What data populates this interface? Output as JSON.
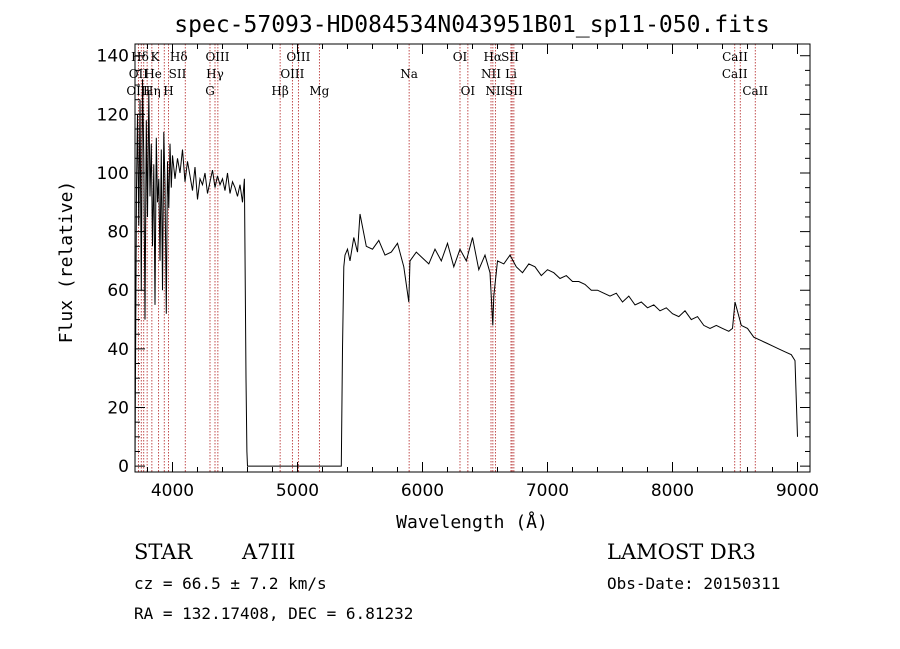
{
  "chart_data": {
    "type": "line",
    "title": "spec-57093-HD084534N043951B01_sp11-050.fits",
    "xlabel": "Wavelength (Å)",
    "ylabel": "Flux (relative)",
    "xlim": [
      3700,
      9100
    ],
    "ylim": [
      -2,
      144
    ],
    "xticks": [
      4000,
      5000,
      6000,
      7000,
      8000,
      9000
    ],
    "yticks": [
      0,
      20,
      40,
      60,
      80,
      100,
      120,
      140
    ],
    "xtick_labels": [
      "4000",
      "5000",
      "6000",
      "7000",
      "8000",
      "9000"
    ],
    "ytick_labels": [
      "0",
      "20",
      "40",
      "60",
      "80",
      "100",
      "120",
      "140"
    ],
    "series": [
      {
        "name": "flux",
        "x": [
          3700,
          3705,
          3712,
          3720,
          3730,
          3740,
          3750,
          3760,
          3770,
          3780,
          3790,
          3800,
          3810,
          3820,
          3830,
          3840,
          3850,
          3860,
          3870,
          3880,
          3890,
          3900,
          3910,
          3920,
          3930,
          3940,
          3950,
          3960,
          3970,
          3980,
          3990,
          4000,
          4020,
          4040,
          4060,
          4080,
          4100,
          4120,
          4140,
          4160,
          4180,
          4200,
          4220,
          4240,
          4260,
          4280,
          4300,
          4320,
          4340,
          4360,
          4380,
          4400,
          4420,
          4440,
          4460,
          4480,
          4500,
          4520,
          4540,
          4560,
          4575,
          4582,
          4588,
          4595,
          4600,
          5350,
          5360,
          5370,
          5380,
          5400,
          5420,
          5450,
          5480,
          5500,
          5550,
          5600,
          5650,
          5700,
          5750,
          5800,
          5850,
          5890,
          5900,
          5950,
          6000,
          6050,
          6100,
          6150,
          6200,
          6250,
          6300,
          6350,
          6400,
          6450,
          6500,
          6540,
          6562,
          6570,
          6600,
          6650,
          6700,
          6750,
          6800,
          6850,
          6900,
          6950,
          7000,
          7050,
          7100,
          7150,
          7200,
          7250,
          7300,
          7350,
          7400,
          7450,
          7500,
          7550,
          7600,
          7650,
          7700,
          7750,
          7800,
          7850,
          7900,
          7950,
          8000,
          8050,
          8100,
          8150,
          8200,
          8250,
          8300,
          8350,
          8400,
          8450,
          8480,
          8500,
          8550,
          8600,
          8650,
          8700,
          8750,
          8800,
          8850,
          8900,
          8950,
          8980,
          9000
        ],
        "y": [
          0,
          40,
          95,
          120,
          82,
          125,
          60,
          132,
          105,
          50,
          118,
          85,
          128,
          92,
          110,
          75,
          103,
          55,
          112,
          90,
          98,
          70,
          108,
          60,
          114,
          96,
          52,
          104,
          88,
          110,
          95,
          106,
          98,
          105,
          100,
          108,
          97,
          104,
          99,
          94,
          102,
          91,
          98,
          96,
          100,
          93,
          97,
          101,
          95,
          99,
          96,
          98,
          94,
          100,
          93,
          97,
          95,
          92,
          96,
          90,
          98,
          60,
          30,
          5,
          0,
          0,
          40,
          68,
          72,
          74,
          70,
          78,
          73,
          86,
          75,
          74,
          77,
          72,
          73,
          76,
          68,
          56,
          70,
          73,
          71,
          69,
          74,
          70,
          76,
          68,
          74,
          70,
          78,
          67,
          72,
          66,
          48,
          58,
          70,
          69,
          72,
          68,
          66,
          69,
          68,
          65,
          67,
          66,
          64,
          65,
          63,
          63,
          62,
          60,
          60,
          59,
          58,
          59,
          56,
          58,
          55,
          56,
          54,
          55,
          53,
          54,
          52,
          51,
          53,
          50,
          51,
          48,
          47,
          48,
          47,
          46,
          47,
          56,
          48,
          47,
          44,
          43,
          42,
          41,
          40,
          39,
          38,
          36,
          10
        ]
      }
    ],
    "spectral_lines": [
      {
        "label": "Hδ",
        "wl": 3740,
        "row": 0
      },
      {
        "label": "K",
        "wl": 3860,
        "row": 0
      },
      {
        "label": "Hδ",
        "wl": 4050,
        "row": 0
      },
      {
        "label": "OIII",
        "wl": 4360,
        "row": 0
      },
      {
        "label": "OIII",
        "wl": 5007,
        "row": 0
      },
      {
        "label": "OI",
        "wl": 6300,
        "row": 0
      },
      {
        "label": "Hα",
        "wl": 6562,
        "row": 0
      },
      {
        "label": "SII",
        "wl": 6700,
        "row": 0
      },
      {
        "label": "CaII",
        "wl": 8500,
        "row": 0
      },
      {
        "label": "OII",
        "wl": 3727,
        "row": 1
      },
      {
        "label": "He",
        "wl": 3845,
        "row": 1
      },
      {
        "label": "SII",
        "wl": 4040,
        "row": 1
      },
      {
        "label": "Hγ",
        "wl": 4340,
        "row": 1
      },
      {
        "label": "OIII",
        "wl": 4959,
        "row": 1
      },
      {
        "label": "Na",
        "wl": 5893,
        "row": 1
      },
      {
        "label": "NII",
        "wl": 6548,
        "row": 1
      },
      {
        "label": "Li",
        "wl": 6708,
        "row": 1
      },
      {
        "label": "CaII",
        "wl": 8498,
        "row": 1
      },
      {
        "label": "OIII",
        "wl": 3727,
        "row": 2
      },
      {
        "label": "Hη",
        "wl": 3835,
        "row": 2
      },
      {
        "label": "H",
        "wl": 3968,
        "row": 2
      },
      {
        "label": "G",
        "wl": 4300,
        "row": 2
      },
      {
        "label": "Hβ",
        "wl": 4861,
        "row": 2
      },
      {
        "label": "Mg",
        "wl": 5175,
        "row": 2
      },
      {
        "label": "OI",
        "wl": 6363,
        "row": 2
      },
      {
        "label": "NII",
        "wl": 6583,
        "row": 2
      },
      {
        "label": "SII",
        "wl": 6731,
        "row": 2
      },
      {
        "label": "CaII",
        "wl": 8662,
        "row": 2
      }
    ],
    "line_markers": [
      3727,
      3750,
      3770,
      3797,
      3835,
      3889,
      3934,
      3968,
      4102,
      4300,
      4340,
      4363,
      4861,
      4959,
      5007,
      5175,
      5893,
      6300,
      6363,
      6548,
      6563,
      6583,
      6708,
      6717,
      6731,
      8498,
      8542,
      8662
    ]
  },
  "info": {
    "object_class": "STAR",
    "subclass": "A7III",
    "survey": "LAMOST DR3",
    "cz": "cz = 66.5 ± 7.2 km/s",
    "obs_date": "Obs-Date: 20150311",
    "coords": "RA = 132.17408, DEC =   6.81232"
  },
  "colors": {
    "spectrum": "#000000",
    "line_marker": "#b22222",
    "axes": "#000000"
  }
}
